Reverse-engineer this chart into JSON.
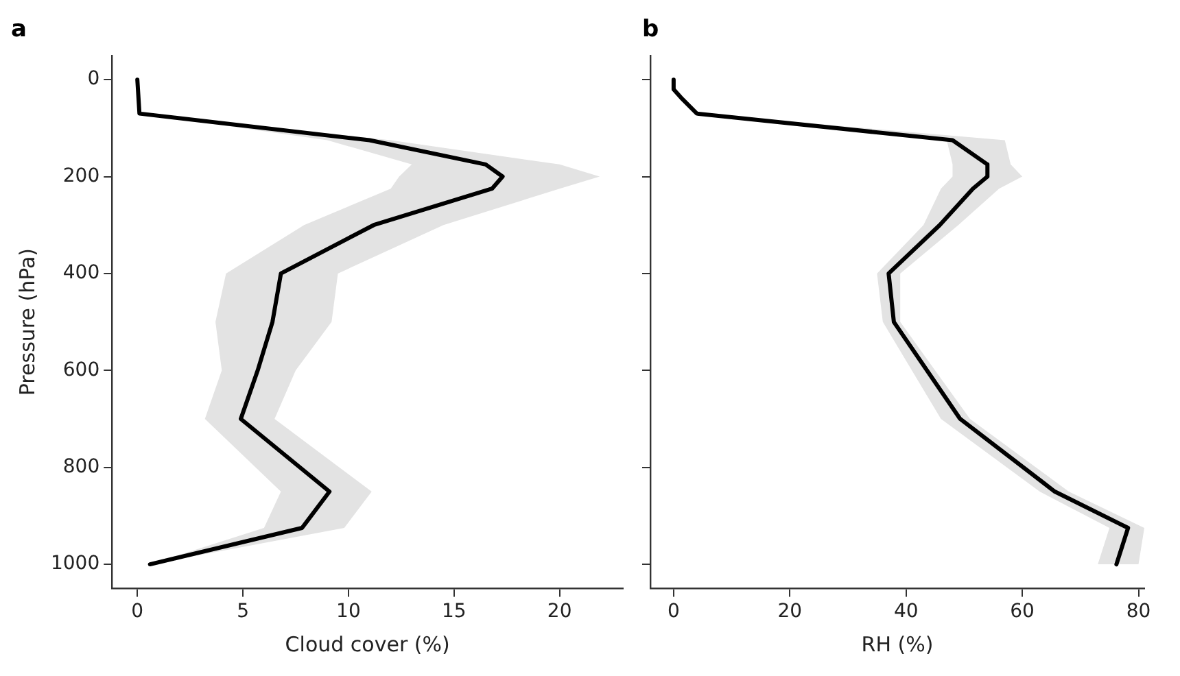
{
  "chart_data": [
    {
      "type": "line",
      "title": "a",
      "xlabel": "Cloud cover (%)",
      "ylabel": "Pressure (hPa)",
      "orientation": "horizontal",
      "xlim": [
        -1.2,
        23
      ],
      "xticks": [
        0,
        5,
        10,
        15,
        20
      ],
      "ylim": [
        1050,
        -50
      ],
      "yticks": [
        0,
        200,
        400,
        600,
        800,
        1000
      ],
      "grid": false,
      "legend": false,
      "marker": "none",
      "line_style": "solid",
      "series": [
        {
          "color": "#000000",
          "x": [
            0,
            70,
            125,
            175,
            200,
            225,
            300,
            400,
            500,
            600,
            700,
            850,
            925,
            1000
          ],
          "values": [
            0,
            0.1,
            11,
            16.5,
            17.3,
            16.8,
            11.2,
            6.8,
            6.4,
            5.7,
            4.9,
            9.1,
            7.8,
            0.6
          ],
          "lower": [
            0,
            0.1,
            9,
            13,
            12.4,
            12,
            7.9,
            4.2,
            3.7,
            4,
            3.2,
            6.8,
            6,
            0.6
          ],
          "upper": [
            0,
            0.1,
            12,
            20,
            21.9,
            20,
            14.5,
            9.5,
            9.2,
            7.5,
            6.5,
            11.1,
            9.8,
            0.6
          ]
        }
      ]
    },
    {
      "type": "line",
      "title": "b",
      "xlabel": "RH (%)",
      "orientation": "horizontal",
      "xlim": [
        -4,
        81
      ],
      "xticks": [
        0,
        20,
        40,
        60,
        80
      ],
      "ylim": [
        1050,
        -50
      ],
      "yticks": [
        0,
        200,
        400,
        600,
        800,
        1000
      ],
      "tick_labels": "x",
      "grid": false,
      "legend": false,
      "marker": "none",
      "line_style": "solid",
      "series": [
        {
          "color": "#000000",
          "x": [
            0,
            20,
            40,
            70,
            125,
            175,
            200,
            225,
            300,
            400,
            500,
            700,
            850,
            925,
            1000
          ],
          "values": [
            0,
            0,
            1.5,
            4,
            48,
            54,
            54,
            51.5,
            45.8,
            37,
            37.9,
            49.3,
            65.6,
            78.2,
            76.2
          ],
          "lower": [
            0,
            0,
            1.5,
            4,
            47,
            48,
            48,
            46,
            43,
            35,
            36,
            46,
            63,
            75,
            73
          ],
          "upper": [
            0,
            0,
            1.5,
            4,
            57,
            58,
            60,
            56,
            49,
            39,
            39,
            51,
            68,
            81,
            80
          ]
        }
      ]
    }
  ]
}
